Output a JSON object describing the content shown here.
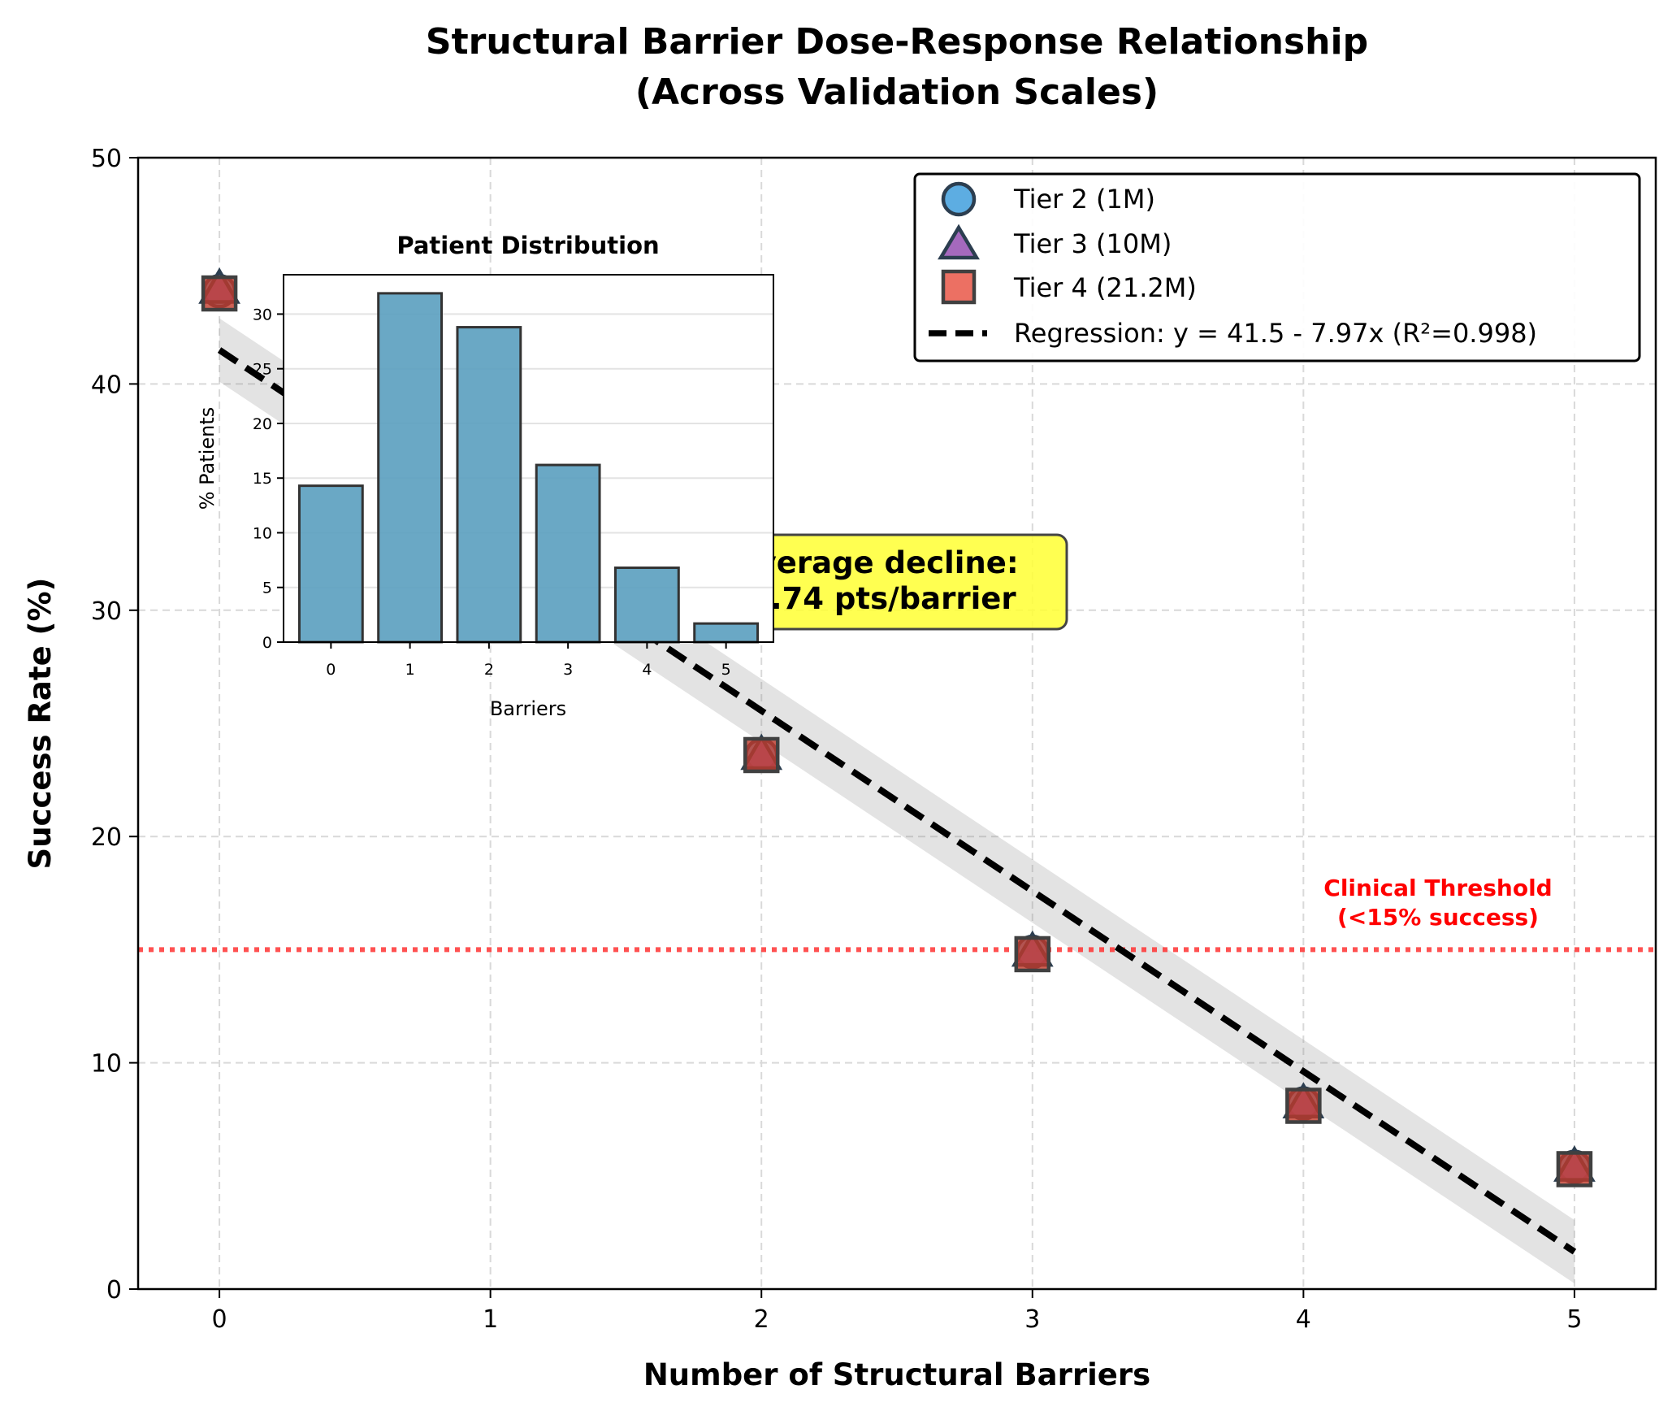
{
  "chart_data": {
    "type": "scatter",
    "title": [
      "Structural Barrier Dose-Response Relationship",
      "(Across Validation Scales)"
    ],
    "xlabel": "Number of Structural Barriers",
    "ylabel": "Success Rate (%)",
    "xlim": [
      -0.3,
      5.3
    ],
    "ylim": [
      0,
      50
    ],
    "xticks": [
      0,
      1,
      2,
      3,
      4,
      5
    ],
    "yticks": [
      0,
      10,
      20,
      30,
      40,
      50
    ],
    "grid": true,
    "legend_position": "top-right",
    "series": [
      {
        "name": "Tier 2 (1M)",
        "marker": "circle",
        "color": "#5dade2",
        "x": [
          0,
          2,
          3,
          4,
          5
        ],
        "y": [
          44.1,
          23.6,
          14.9,
          8.2,
          5.4
        ]
      },
      {
        "name": "Tier 3 (10M)",
        "marker": "triangle",
        "color": "#a569bd",
        "x": [
          0,
          2,
          3,
          4,
          5
        ],
        "y": [
          44.2,
          23.6,
          14.9,
          8.2,
          5.4
        ]
      },
      {
        "name": "Tier 4 (21.2M)",
        "marker": "square",
        "color": "#ec7063",
        "x": [
          0,
          2,
          3,
          4,
          5
        ],
        "y": [
          44.0,
          23.6,
          14.8,
          8.1,
          5.3
        ]
      }
    ],
    "regression": {
      "label": "Regression: y = 41.5 - 7.97x (R²=0.998)",
      "intercept": 41.5,
      "slope": -7.97,
      "band": 1.4
    },
    "threshold": {
      "y": 15,
      "label": [
        "Clinical Threshold",
        "(<15% success)"
      ],
      "color": "#ff0000"
    },
    "annotation": {
      "lines": [
        "Average decline:",
        "-7.74 pts/barrier"
      ],
      "background": "#ffff33"
    },
    "inset": {
      "type": "bar",
      "title": "Patient Distribution",
      "xlabel": "Barriers",
      "ylabel": "% Patients",
      "categories": [
        "0",
        "1",
        "2",
        "3",
        "4",
        "5"
      ],
      "values": [
        14.3,
        31.9,
        28.8,
        16.2,
        6.8,
        1.7
      ],
      "ylim": [
        0,
        33.6
      ],
      "yticks": [
        0,
        5,
        10,
        15,
        20,
        25,
        30
      ],
      "color": "#5a9ebf"
    }
  }
}
